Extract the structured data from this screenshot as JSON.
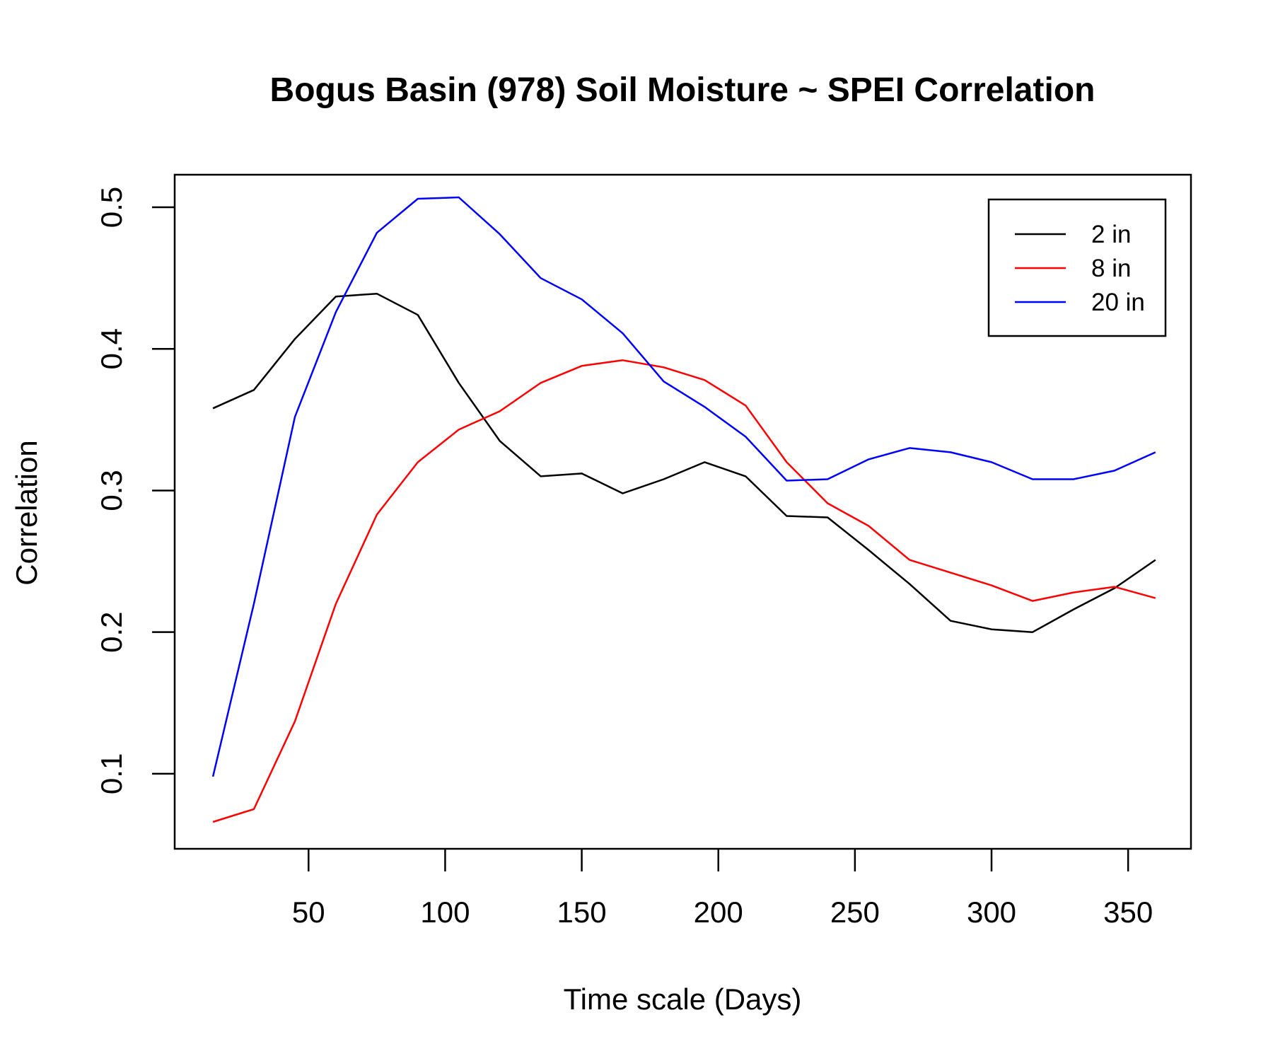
{
  "chart_data": {
    "type": "line",
    "title": "Bogus Basin (978) Soil Moisture ~ SPEI Correlation",
    "xlabel": "Time scale (Days)",
    "ylabel": "Correlation",
    "xlim": [
      1,
      373
    ],
    "ylim": [
      0.047,
      0.523
    ],
    "x_ticks": [
      50,
      100,
      150,
      200,
      250,
      300,
      350
    ],
    "x_tick_labels": [
      "50",
      "100",
      "150",
      "200",
      "250",
      "300",
      "350"
    ],
    "y_ticks": [
      0.1,
      0.2,
      0.3,
      0.4,
      0.5
    ],
    "y_tick_labels": [
      "0.1",
      "0.2",
      "0.3",
      "0.4",
      "0.5"
    ],
    "grid": false,
    "legend_position": "top-right",
    "x": [
      15,
      30,
      45,
      60,
      75,
      90,
      105,
      120,
      135,
      150,
      165,
      180,
      195,
      210,
      225,
      240,
      255,
      270,
      285,
      300,
      315,
      330,
      345,
      360
    ],
    "series": [
      {
        "name": "2 in",
        "color": "#000000",
        "values": [
          0.358,
          0.371,
          0.407,
          0.437,
          0.439,
          0.424,
          0.376,
          0.335,
          0.31,
          0.312,
          0.298,
          0.308,
          0.32,
          0.31,
          0.282,
          0.281,
          0.258,
          0.234,
          0.208,
          0.202,
          0.2,
          0.216,
          0.231,
          0.251
        ]
      },
      {
        "name": "8 in",
        "color": "#ff0000",
        "values": [
          0.066,
          0.075,
          0.137,
          0.22,
          0.283,
          0.32,
          0.343,
          0.356,
          0.376,
          0.388,
          0.392,
          0.387,
          0.378,
          0.36,
          0.32,
          0.291,
          0.275,
          0.251,
          0.242,
          0.233,
          0.222,
          0.228,
          0.232,
          0.224
        ]
      },
      {
        "name": "20 in",
        "color": "#0000ff",
        "values": [
          0.098,
          0.22,
          0.352,
          0.426,
          0.482,
          0.506,
          0.507,
          0.481,
          0.45,
          0.435,
          0.411,
          0.377,
          0.359,
          0.338,
          0.307,
          0.308,
          0.322,
          0.33,
          0.327,
          0.32,
          0.308,
          0.308,
          0.314,
          0.327
        ]
      }
    ]
  }
}
